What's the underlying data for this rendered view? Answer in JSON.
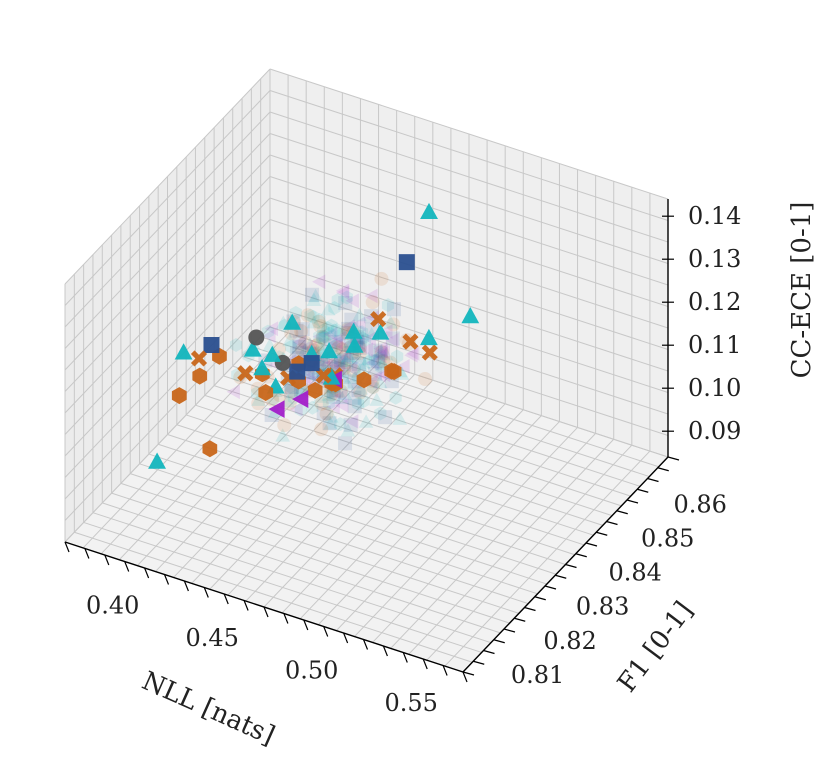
{
  "chart_data": {
    "type": "scatter",
    "projection": "3d",
    "grid": true,
    "x_axis": {
      "label": "NLL [nats]",
      "range": [
        0.37,
        0.57
      ],
      "ticks": [
        "0.40",
        "0.45",
        "0.50",
        "0.55"
      ],
      "tick_values": [
        0.4,
        0.45,
        0.5,
        0.55
      ]
    },
    "y_axis": {
      "label": "F1 [0-1]",
      "range": [
        0.805,
        0.868
      ],
      "ticks": [
        "0.81",
        "0.82",
        "0.83",
        "0.84",
        "0.85",
        "0.86"
      ],
      "tick_values": [
        0.81,
        0.82,
        0.83,
        0.84,
        0.85,
        0.86
      ]
    },
    "z_axis": {
      "label": "CC-ECE [0-1]",
      "range": [
        0.084,
        0.144
      ],
      "ticks": [
        "0.09",
        "0.10",
        "0.11",
        "0.12",
        "0.13",
        "0.14"
      ],
      "tick_values": [
        0.09,
        0.1,
        0.11,
        0.12,
        0.13,
        0.14
      ]
    },
    "series": [
      {
        "marker": "triangle",
        "color": "#12b5bd",
        "points": [
          [
            0.392,
            0.828,
            0.113
          ],
          [
            0.42,
            0.835,
            0.108
          ],
          [
            0.395,
            0.818,
            0.096
          ],
          [
            0.463,
            0.86,
            0.131
          ],
          [
            0.44,
            0.832,
            0.124
          ],
          [
            0.43,
            0.826,
            0.121
          ],
          [
            0.468,
            0.842,
            0.118
          ],
          [
            0.452,
            0.836,
            0.116
          ],
          [
            0.455,
            0.842,
            0.113
          ],
          [
            0.44,
            0.838,
            0.112
          ],
          [
            0.448,
            0.846,
            0.112
          ],
          [
            0.43,
            0.832,
            0.115
          ],
          [
            0.487,
            0.858,
            0.112
          ],
          [
            0.476,
            0.852,
            0.11
          ],
          [
            0.45,
            0.838,
            0.108
          ],
          [
            0.435,
            0.83,
            0.11
          ]
        ]
      },
      {
        "marker": "hexagon",
        "color": "#c8661a",
        "points": [
          [
            0.398,
            0.823,
            0.108
          ],
          [
            0.405,
            0.825,
            0.112
          ],
          [
            0.415,
            0.822,
            0.099
          ],
          [
            0.41,
            0.828,
            0.115
          ],
          [
            0.455,
            0.835,
            0.11
          ],
          [
            0.463,
            0.84,
            0.108
          ],
          [
            0.472,
            0.843,
            0.109
          ],
          [
            0.44,
            0.834,
            0.109
          ],
          [
            0.425,
            0.832,
            0.11
          ],
          [
            0.43,
            0.83,
            0.108
          ],
          [
            0.445,
            0.836,
            0.106
          ],
          [
            0.452,
            0.838,
            0.107
          ],
          [
            0.47,
            0.845,
            0.107
          ],
          [
            0.44,
            0.834,
            0.113
          ]
        ]
      },
      {
        "marker": "x",
        "color": "#c8661a",
        "points": [
          [
            0.403,
            0.826,
            0.115
          ],
          [
            0.423,
            0.828,
            0.113
          ],
          [
            0.455,
            0.836,
            0.111
          ],
          [
            0.462,
            0.845,
            0.118
          ],
          [
            0.483,
            0.848,
            0.111
          ],
          [
            0.446,
            0.838,
            0.108
          ],
          [
            0.47,
            0.85,
            0.11
          ],
          [
            0.438,
            0.832,
            0.111
          ]
        ]
      },
      {
        "marker": "square",
        "color": "#2a4f8f",
        "points": [
          [
            0.406,
            0.828,
            0.117
          ],
          [
            0.46,
            0.855,
            0.123
          ],
          [
            0.436,
            0.836,
            0.109
          ],
          [
            0.44,
            0.838,
            0.11
          ]
        ]
      },
      {
        "marker": "circle",
        "color": "#555555",
        "points": [
          [
            0.422,
            0.832,
            0.118
          ],
          [
            0.432,
            0.834,
            0.112
          ]
        ]
      },
      {
        "marker": "triangle-left",
        "color": "#a21dc9",
        "points": [
          [
            0.433,
            0.832,
            0.103
          ],
          [
            0.452,
            0.838,
            0.108
          ],
          [
            0.44,
            0.835,
            0.104
          ]
        ]
      }
    ]
  }
}
